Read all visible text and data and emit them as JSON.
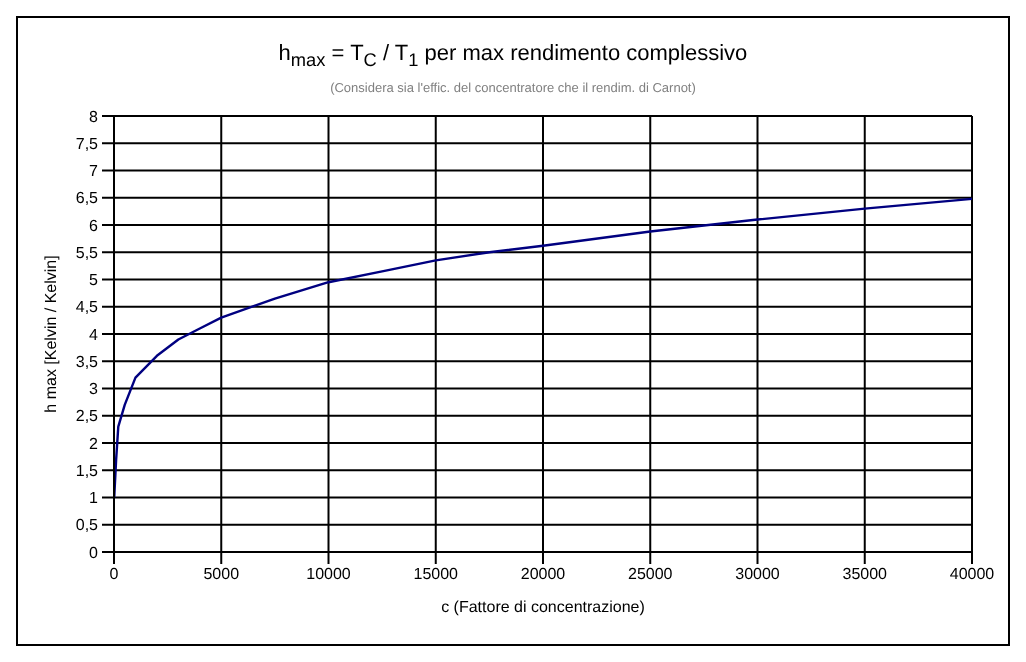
{
  "chart_data": {
    "type": "line",
    "title": "h$_{max}$  =  T$_{C}$ / T$_{1}$     per max rendimento complessivo",
    "subtitle": "(Considera sia l'effic. del concentratore che il rendim. di Carnot)",
    "xlabel": "c  (Fattore di concentrazione)",
    "ylabel": "h max  [Kelvin / Kelvin]",
    "x": [
      10,
      100,
      200,
      500,
      1000,
      2000,
      3000,
      4000,
      5000,
      7500,
      10000,
      12500,
      15000,
      17500,
      20000,
      25000,
      30000,
      35000,
      40000
    ],
    "series": [
      {
        "color": "#000080",
        "values": [
          1.0,
          1.7,
          2.3,
          2.7,
          3.2,
          3.6,
          3.9,
          4.1,
          4.3,
          4.65,
          4.95,
          5.15,
          5.35,
          5.5,
          5.62,
          5.88,
          6.1,
          6.3,
          6.48
        ]
      }
    ],
    "xlim": [
      0,
      40000
    ],
    "xticks": [
      0,
      5000,
      10000,
      15000,
      20000,
      25000,
      30000,
      35000,
      40000
    ],
    "ylim": [
      0,
      8
    ],
    "yticks": [
      0,
      {
        "value": 0.5,
        "label": "0,5"
      },
      1,
      {
        "value": 1.5,
        "label": "1,5"
      },
      2,
      {
        "value": 2.5,
        "label": "2,5"
      },
      3,
      {
        "value": 3.5,
        "label": "3,5"
      },
      4,
      {
        "value": 4.5,
        "label": "4,5"
      },
      5,
      {
        "value": 5.5,
        "label": "5,5"
      },
      6,
      {
        "value": 6.5,
        "label": "6,5"
      },
      7,
      {
        "value": 7.5,
        "label": "7,5"
      },
      8
    ],
    "grid": true,
    "legend": false,
    "marker": "none",
    "line_style": "solid"
  }
}
